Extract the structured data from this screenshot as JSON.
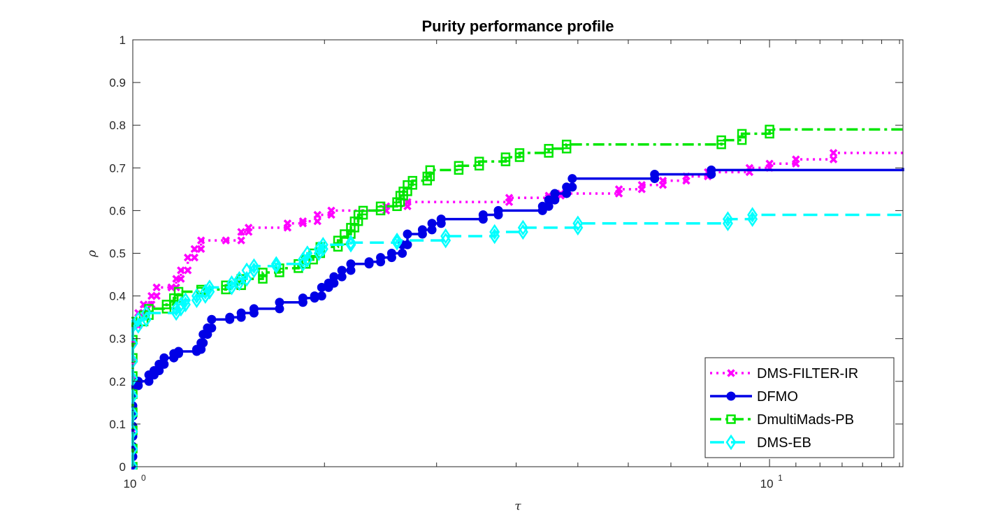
{
  "chart_data": {
    "type": "line",
    "title": "Purity performance profile",
    "xlabel": "τ",
    "ylabel": "ρ",
    "xscale": "log",
    "xlim": [
      1,
      16.2
    ],
    "ylim": [
      0,
      1
    ],
    "yticks": [
      "0",
      "0.1",
      "0.2",
      "0.3",
      "0.4",
      "0.5",
      "0.6",
      "0.7",
      "0.8",
      "0.9",
      "1"
    ],
    "xtick_major_labels": [
      {
        "base": "10",
        "exp": "0"
      },
      {
        "base": "10",
        "exp": "1"
      }
    ],
    "grid": false,
    "legend_position": "bottom-right",
    "series": [
      {
        "name": "DMS-FILTER-IR",
        "color": "#ff00ff",
        "line_style": "dotted",
        "marker": "x",
        "points": [
          [
            1.0,
            0.0
          ],
          [
            1.0,
            0.33
          ],
          [
            1.02,
            0.36
          ],
          [
            1.04,
            0.38
          ],
          [
            1.07,
            0.4
          ],
          [
            1.09,
            0.42
          ],
          [
            1.15,
            0.42
          ],
          [
            1.17,
            0.44
          ],
          [
            1.19,
            0.46
          ],
          [
            1.22,
            0.49
          ],
          [
            1.25,
            0.51
          ],
          [
            1.28,
            0.53
          ],
          [
            1.4,
            0.53
          ],
          [
            1.48,
            0.55
          ],
          [
            1.52,
            0.56
          ],
          [
            1.75,
            0.57
          ],
          [
            1.85,
            0.575
          ],
          [
            1.95,
            0.59
          ],
          [
            2.05,
            0.6
          ],
          [
            2.5,
            0.61
          ],
          [
            2.7,
            0.62
          ],
          [
            3.9,
            0.63
          ],
          [
            4.5,
            0.635
          ],
          [
            4.7,
            0.64
          ],
          [
            5.8,
            0.65
          ],
          [
            6.3,
            0.66
          ],
          [
            6.8,
            0.67
          ],
          [
            7.4,
            0.68
          ],
          [
            8.0,
            0.69
          ],
          [
            9.3,
            0.7
          ],
          [
            10.0,
            0.71
          ],
          [
            11.0,
            0.72
          ],
          [
            12.6,
            0.735
          ],
          [
            16.2,
            0.74
          ]
        ]
      },
      {
        "name": "DFMO",
        "color": "#0000e6",
        "line_style": "solid",
        "marker": "circle",
        "points": [
          [
            1.0,
            0.0
          ],
          [
            1.0,
            0.19
          ],
          [
            1.02,
            0.2
          ],
          [
            1.06,
            0.215
          ],
          [
            1.08,
            0.225
          ],
          [
            1.1,
            0.24
          ],
          [
            1.12,
            0.255
          ],
          [
            1.16,
            0.265
          ],
          [
            1.18,
            0.27
          ],
          [
            1.26,
            0.275
          ],
          [
            1.28,
            0.29
          ],
          [
            1.29,
            0.31
          ],
          [
            1.31,
            0.325
          ],
          [
            1.33,
            0.345
          ],
          [
            1.42,
            0.35
          ],
          [
            1.48,
            0.36
          ],
          [
            1.55,
            0.37
          ],
          [
            1.7,
            0.385
          ],
          [
            1.85,
            0.395
          ],
          [
            1.93,
            0.4
          ],
          [
            1.98,
            0.42
          ],
          [
            2.03,
            0.43
          ],
          [
            2.07,
            0.445
          ],
          [
            2.13,
            0.46
          ],
          [
            2.2,
            0.475
          ],
          [
            2.35,
            0.48
          ],
          [
            2.45,
            0.49
          ],
          [
            2.55,
            0.5
          ],
          [
            2.65,
            0.52
          ],
          [
            2.7,
            0.545
          ],
          [
            2.85,
            0.555
          ],
          [
            2.95,
            0.57
          ],
          [
            3.05,
            0.58
          ],
          [
            3.55,
            0.59
          ],
          [
            3.75,
            0.6
          ],
          [
            4.4,
            0.61
          ],
          [
            4.5,
            0.625
          ],
          [
            4.6,
            0.64
          ],
          [
            4.8,
            0.655
          ],
          [
            4.9,
            0.675
          ],
          [
            6.6,
            0.685
          ],
          [
            8.1,
            0.695
          ],
          [
            16.2,
            0.7
          ]
        ]
      },
      {
        "name": "DmultiMads-PB",
        "color": "#00e600",
        "line_style": "dashdot",
        "marker": "square",
        "points": [
          [
            1.0,
            0.0
          ],
          [
            1.0,
            0.34
          ],
          [
            1.04,
            0.355
          ],
          [
            1.06,
            0.37
          ],
          [
            1.13,
            0.38
          ],
          [
            1.16,
            0.395
          ],
          [
            1.18,
            0.41
          ],
          [
            1.28,
            0.415
          ],
          [
            1.4,
            0.425
          ],
          [
            1.48,
            0.44
          ],
          [
            1.6,
            0.455
          ],
          [
            1.7,
            0.465
          ],
          [
            1.82,
            0.475
          ],
          [
            1.87,
            0.485
          ],
          [
            1.92,
            0.5
          ],
          [
            1.97,
            0.515
          ],
          [
            2.1,
            0.53
          ],
          [
            2.15,
            0.545
          ],
          [
            2.2,
            0.56
          ],
          [
            2.23,
            0.575
          ],
          [
            2.26,
            0.59
          ],
          [
            2.3,
            0.6
          ],
          [
            2.45,
            0.61
          ],
          [
            2.6,
            0.62
          ],
          [
            2.63,
            0.635
          ],
          [
            2.66,
            0.645
          ],
          [
            2.7,
            0.66
          ],
          [
            2.75,
            0.67
          ],
          [
            2.9,
            0.68
          ],
          [
            2.93,
            0.695
          ],
          [
            3.25,
            0.705
          ],
          [
            3.5,
            0.715
          ],
          [
            3.85,
            0.725
          ],
          [
            4.05,
            0.735
          ],
          [
            4.5,
            0.745
          ],
          [
            4.8,
            0.755
          ],
          [
            8.4,
            0.765
          ],
          [
            9.05,
            0.78
          ],
          [
            10.0,
            0.79
          ],
          [
            16.2,
            0.795
          ]
        ]
      },
      {
        "name": "DMS-EB",
        "color": "#00ffff",
        "line_style": "dashed",
        "marker": "diamond",
        "points": [
          [
            1.0,
            0.0
          ],
          [
            1.0,
            0.33
          ],
          [
            1.02,
            0.345
          ],
          [
            1.05,
            0.36
          ],
          [
            1.17,
            0.37
          ],
          [
            1.19,
            0.38
          ],
          [
            1.21,
            0.39
          ],
          [
            1.26,
            0.4
          ],
          [
            1.3,
            0.41
          ],
          [
            1.32,
            0.42
          ],
          [
            1.43,
            0.43
          ],
          [
            1.47,
            0.44
          ],
          [
            1.51,
            0.46
          ],
          [
            1.55,
            0.47
          ],
          [
            1.68,
            0.475
          ],
          [
            1.85,
            0.485
          ],
          [
            1.88,
            0.5
          ],
          [
            1.96,
            0.51
          ],
          [
            1.99,
            0.52
          ],
          [
            2.2,
            0.525
          ],
          [
            2.6,
            0.53
          ],
          [
            3.1,
            0.54
          ],
          [
            3.7,
            0.55
          ],
          [
            4.1,
            0.56
          ],
          [
            5.0,
            0.57
          ],
          [
            8.6,
            0.58
          ],
          [
            9.4,
            0.59
          ],
          [
            16.2,
            0.6
          ]
        ]
      }
    ]
  }
}
